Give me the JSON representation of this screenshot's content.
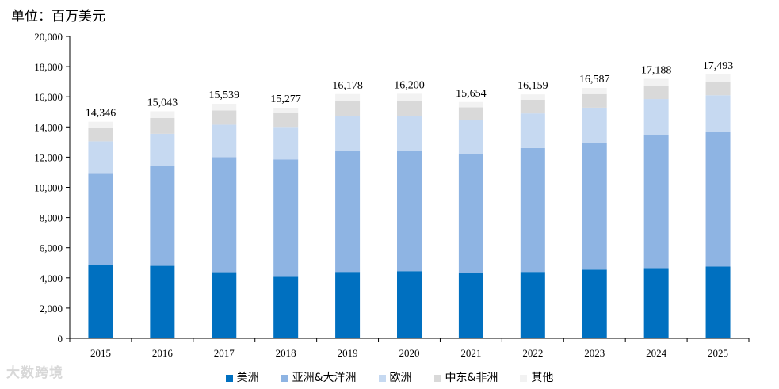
{
  "unit_label": "单位：百万美元",
  "watermark": "大数跨境",
  "chart_data": {
    "type": "bar",
    "stacked": true,
    "categories": [
      "2015",
      "2016",
      "2017",
      "2018",
      "2019",
      "2020",
      "2021",
      "2022",
      "2023",
      "2024",
      "2025"
    ],
    "ylim": [
      0,
      20000
    ],
    "yticks": [
      0,
      2000,
      4000,
      6000,
      8000,
      10000,
      12000,
      14000,
      16000,
      18000,
      20000
    ],
    "ytick_labels": [
      "0",
      "2,000",
      "4,000",
      "6,000",
      "8,000",
      "10,000",
      "12,000",
      "14,000",
      "16,000",
      "18,000",
      "20,000"
    ],
    "totals": [
      14346,
      15043,
      15539,
      15277,
      16178,
      16200,
      15654,
      16159,
      16587,
      17188,
      17493
    ],
    "total_labels": [
      "14,346",
      "15,043",
      "15,539",
      "15,277",
      "16,178",
      "16,200",
      "15,654",
      "16,159",
      "16,587",
      "17,188",
      "17,493"
    ],
    "legend_position": "bottom",
    "grid": false,
    "series": [
      {
        "name": "美洲",
        "color": "#0070c0",
        "values": [
          4850,
          4800,
          4380,
          4070,
          4400,
          4450,
          4350,
          4400,
          4550,
          4650,
          4750
        ]
      },
      {
        "name": "亚洲&大洋洲",
        "color": "#8eb4e3",
        "values": [
          6100,
          6600,
          7620,
          7780,
          8020,
          7950,
          7850,
          8200,
          8380,
          8800,
          8900
        ]
      },
      {
        "name": "欧洲",
        "color": "#c6d9f1",
        "values": [
          2100,
          2150,
          2150,
          2150,
          2300,
          2300,
          2250,
          2300,
          2350,
          2400,
          2450
        ]
      },
      {
        "name": "中东&非洲",
        "color": "#d9d9d9",
        "values": [
          900,
          1050,
          950,
          920,
          1000,
          1050,
          850,
          900,
          900,
          850,
          900
        ]
      },
      {
        "name": "其他",
        "color": "#f2f2f2",
        "values": [
          396,
          443,
          439,
          357,
          458,
          450,
          354,
          359,
          407,
          488,
          493
        ]
      }
    ]
  }
}
